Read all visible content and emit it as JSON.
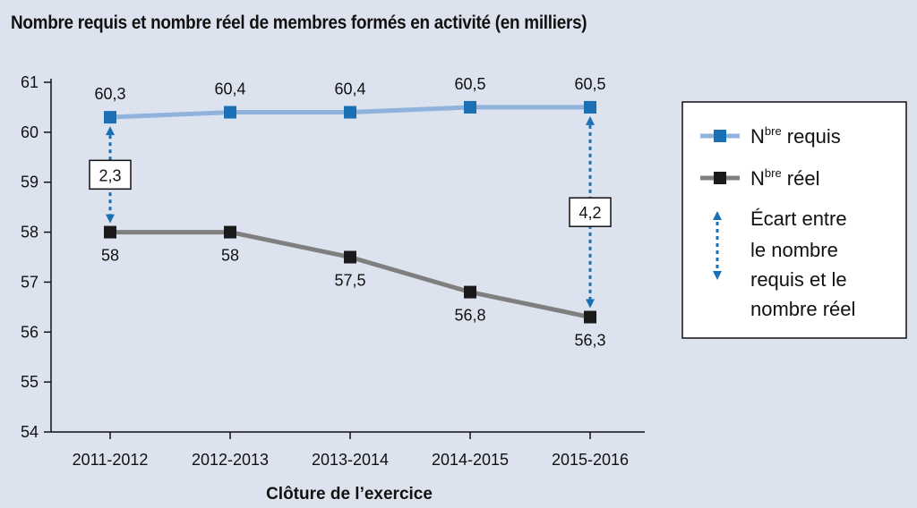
{
  "colors": {
    "required": "#8fb3dd",
    "required_marker": "#1a6fb5",
    "actual": "#7f7f7f",
    "actual_marker": "#1a1a1a",
    "gap_arrow": "#1a6fb5",
    "background": "#dde3ee"
  },
  "chart_data": {
    "type": "line",
    "title": "Nombre requis et nombre réel de membres formés en activité (en milliers)",
    "xlabel": "Clôture de l’exercice",
    "ylabel": "",
    "categories": [
      "2011-2012",
      "2012-2013",
      "2013-2014",
      "2014-2015",
      "2015-2016"
    ],
    "ylim": [
      54,
      61
    ],
    "yticks": [
      "54",
      "55",
      "56",
      "57",
      "58",
      "59",
      "60",
      "61"
    ],
    "grid": false,
    "legend_position": "right",
    "series": [
      {
        "name": "requis",
        "values": [
          60.3,
          60.4,
          60.4,
          60.5,
          60.5
        ],
        "labels": [
          "60,3",
          "60,4",
          "60,4",
          "60,5",
          "60,5"
        ]
      },
      {
        "name": "réel",
        "values": [
          58,
          58,
          57.5,
          56.8,
          56.3
        ],
        "labels": [
          "58",
          "58",
          "57,5",
          "56,8",
          "56,3"
        ]
      }
    ],
    "gaps": [
      {
        "category": "2011-2012",
        "label": "2,3"
      },
      {
        "category": "2015-2016",
        "label": "4,2"
      }
    ],
    "legend": {
      "required_prefix": "N",
      "required_sup": "bre",
      "required_suffix": " requis",
      "actual_prefix": "N",
      "actual_sup": "bre",
      "actual_suffix": " réel",
      "gap_lines": [
        "Écart entre",
        "le nombre",
        "requis et le",
        "nombre réel"
      ]
    }
  }
}
